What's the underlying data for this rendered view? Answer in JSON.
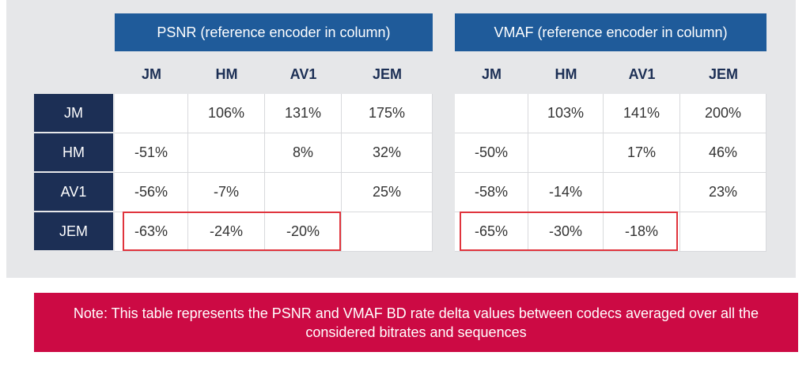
{
  "groups": [
    {
      "title": "PSNR (reference encoder in column)"
    },
    {
      "title": "VMAF (reference encoder in column)"
    }
  ],
  "columns": [
    "JM",
    "HM",
    "AV1",
    "JEM"
  ],
  "rows": [
    "JM",
    "HM",
    "AV1",
    "JEM"
  ],
  "psnr": [
    [
      "",
      "106%",
      "131%",
      "175%"
    ],
    [
      "-51%",
      "",
      "8%",
      "32%"
    ],
    [
      "-56%",
      "-7%",
      "",
      "25%"
    ],
    [
      "-63%",
      "-24%",
      "-20%",
      ""
    ]
  ],
  "vmaf": [
    [
      "",
      "103%",
      "141%",
      "200%"
    ],
    [
      "-50%",
      "",
      "17%",
      "46%"
    ],
    [
      "-58%",
      "-14%",
      "",
      "23%"
    ],
    [
      "-65%",
      "-30%",
      "-18%",
      ""
    ]
  ],
  "note": "Note: This table represents the PSNR and VMAF BD rate delta values between codecs averaged over all the considered bitrates and sequences",
  "colors": {
    "header_blue": "#1f5b9a",
    "row_navy": "#1c2f55",
    "note_red": "#cc0a44",
    "highlight_red": "#e0343d",
    "panel_gray": "#e6e7e9"
  }
}
